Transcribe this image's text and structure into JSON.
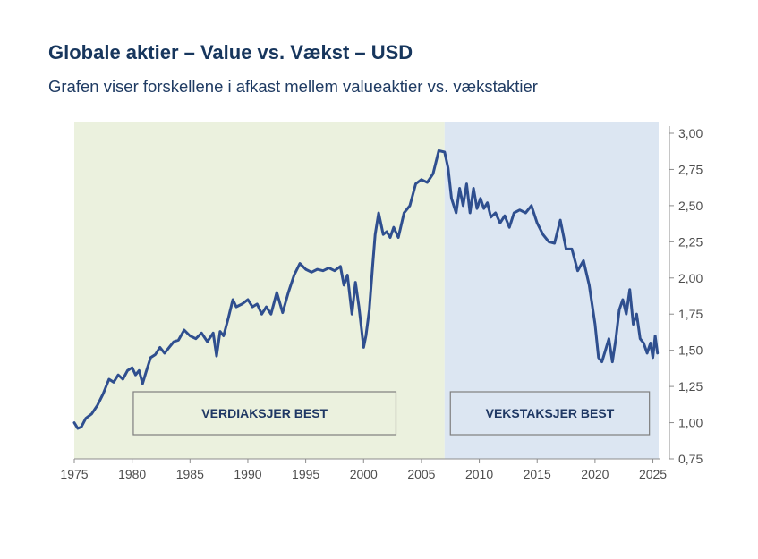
{
  "header": {
    "title": "Globale aktier – Value vs. Vækst – USD",
    "subtitle": "Grafen viser forskellene i afkast mellem valueaktier vs. vækstaktier"
  },
  "colors": {
    "value_region": "#ebf1de",
    "growth_region": "#dce6f2",
    "line": "#2f4f8f",
    "title": "#17365d"
  },
  "chart_data": {
    "type": "line",
    "title": "",
    "xlabel": "",
    "ylabel": "",
    "xlim": [
      1975,
      2025.5
    ],
    "ylim": [
      0.75,
      3.0
    ],
    "y_axis_position": "right",
    "grid": false,
    "x_ticks": [
      1975,
      1980,
      1985,
      1990,
      1995,
      2000,
      2005,
      2010,
      2015,
      2020,
      2025
    ],
    "x_tick_labels": [
      "1975",
      "1980",
      "1985",
      "1990",
      "1995",
      "2000",
      "2005",
      "2010",
      "2015",
      "2020",
      "2025"
    ],
    "y_ticks": [
      0.75,
      1.0,
      1.25,
      1.5,
      1.75,
      2.0,
      2.25,
      2.5,
      2.75,
      3.0
    ],
    "y_tick_labels": [
      "0,75",
      "1,00",
      "1,25",
      "1,50",
      "1,75",
      "2,00",
      "2,25",
      "2,50",
      "2,75",
      "3,00"
    ],
    "regions": [
      {
        "label": "VERDIAKSJER BEST",
        "from": 1975,
        "to": 2007
      },
      {
        "label": "VEKSTAKSJER BEST",
        "from": 2007,
        "to": 2025.5
      }
    ],
    "series": [
      {
        "name": "",
        "x": [
          1975.0,
          1975.3,
          1975.6,
          1976.0,
          1976.5,
          1977.0,
          1977.5,
          1978.0,
          1978.4,
          1978.8,
          1979.2,
          1979.6,
          1980.0,
          1980.3,
          1980.6,
          1980.9,
          1981.2,
          1981.6,
          1982.0,
          1982.4,
          1982.8,
          1983.2,
          1983.6,
          1984.0,
          1984.5,
          1985.0,
          1985.5,
          1986.0,
          1986.5,
          1987.0,
          1987.3,
          1987.6,
          1987.9,
          1988.3,
          1988.7,
          1989.0,
          1989.5,
          1990.0,
          1990.4,
          1990.8,
          1991.2,
          1991.6,
          1992.0,
          1992.5,
          1993.0,
          1993.5,
          1994.0,
          1994.5,
          1995.0,
          1995.5,
          1996.0,
          1996.5,
          1997.0,
          1997.5,
          1998.0,
          1998.3,
          1998.6,
          1999.0,
          1999.3,
          1999.6,
          2000.0,
          2000.2,
          2000.5,
          2000.8,
          2001.0,
          2001.3,
          2001.7,
          2002.0,
          2002.3,
          2002.6,
          2003.0,
          2003.5,
          2004.0,
          2004.5,
          2005.0,
          2005.5,
          2006.0,
          2006.5,
          2007.0,
          2007.3,
          2007.6,
          2008.0,
          2008.3,
          2008.6,
          2008.9,
          2009.2,
          2009.5,
          2009.8,
          2010.1,
          2010.4,
          2010.7,
          2011.0,
          2011.4,
          2011.8,
          2012.2,
          2012.6,
          2013.0,
          2013.5,
          2014.0,
          2014.5,
          2015.0,
          2015.5,
          2016.0,
          2016.5,
          2017.0,
          2017.5,
          2018.0,
          2018.5,
          2019.0,
          2019.5,
          2020.0,
          2020.3,
          2020.6,
          2020.9,
          2021.2,
          2021.5,
          2021.8,
          2022.1,
          2022.4,
          2022.7,
          2023.0,
          2023.3,
          2023.6,
          2023.9,
          2024.2,
          2024.5,
          2024.8,
          2025.0,
          2025.2,
          2025.4
        ],
        "values": [
          1.0,
          0.96,
          0.97,
          1.03,
          1.06,
          1.12,
          1.2,
          1.3,
          1.28,
          1.33,
          1.3,
          1.36,
          1.38,
          1.33,
          1.36,
          1.27,
          1.35,
          1.45,
          1.47,
          1.52,
          1.48,
          1.52,
          1.56,
          1.57,
          1.64,
          1.6,
          1.58,
          1.62,
          1.56,
          1.62,
          1.46,
          1.63,
          1.6,
          1.72,
          1.85,
          1.8,
          1.82,
          1.85,
          1.8,
          1.82,
          1.75,
          1.8,
          1.75,
          1.9,
          1.76,
          1.9,
          2.02,
          2.1,
          2.06,
          2.04,
          2.06,
          2.05,
          2.07,
          2.05,
          2.08,
          1.95,
          2.02,
          1.75,
          1.97,
          1.8,
          1.52,
          1.6,
          1.78,
          2.1,
          2.3,
          2.45,
          2.3,
          2.32,
          2.28,
          2.35,
          2.28,
          2.45,
          2.5,
          2.65,
          2.68,
          2.66,
          2.72,
          2.88,
          2.87,
          2.76,
          2.55,
          2.45,
          2.62,
          2.5,
          2.65,
          2.45,
          2.62,
          2.48,
          2.55,
          2.48,
          2.52,
          2.42,
          2.45,
          2.38,
          2.43,
          2.35,
          2.45,
          2.47,
          2.45,
          2.5,
          2.38,
          2.3,
          2.25,
          2.24,
          2.4,
          2.2,
          2.2,
          2.05,
          2.12,
          1.95,
          1.68,
          1.45,
          1.42,
          1.5,
          1.58,
          1.42,
          1.58,
          1.78,
          1.85,
          1.75,
          1.92,
          1.68,
          1.75,
          1.58,
          1.55,
          1.48,
          1.55,
          1.45,
          1.6,
          1.48
        ]
      }
    ]
  }
}
